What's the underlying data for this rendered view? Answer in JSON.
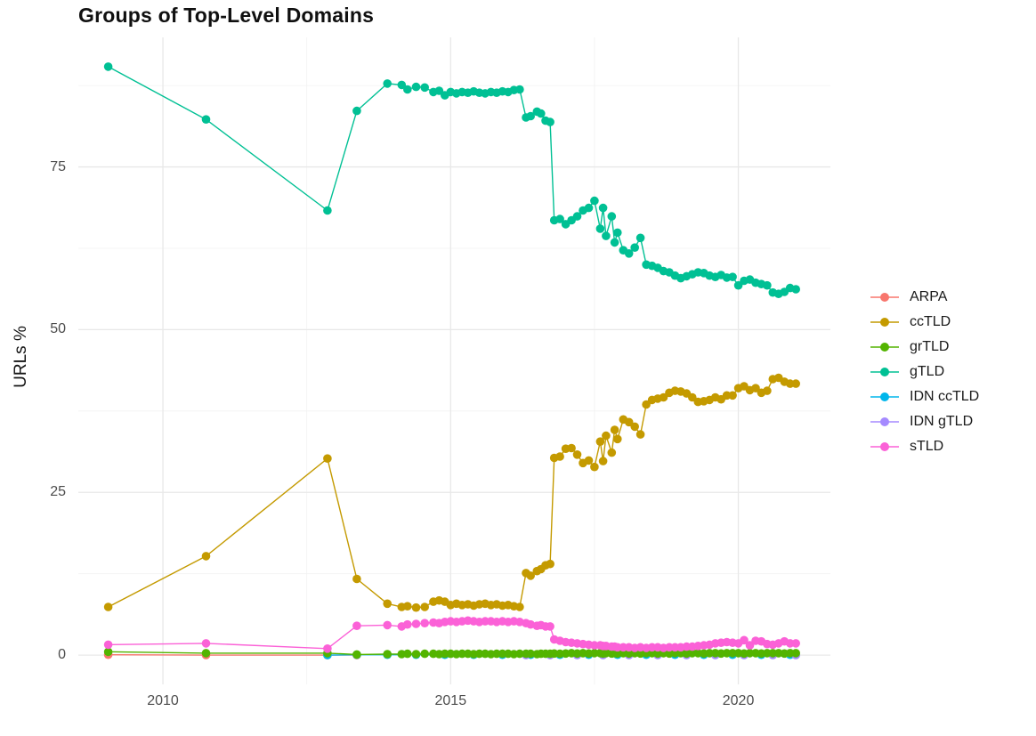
{
  "title": "Groups of Top-Level Domains",
  "y_axis": {
    "label": "URLs %",
    "tick_labels": [
      "0",
      "25",
      "50",
      "75"
    ]
  },
  "x_axis": {
    "tick_labels": [
      "2010",
      "2015",
      "2020"
    ]
  },
  "legend": {
    "position": "right",
    "items": [
      "ARPA",
      "ccTLD",
      "grTLD",
      "gTLD",
      "IDN ccTLD",
      "IDN gTLD",
      "sTLD"
    ]
  },
  "chart_data": {
    "type": "line",
    "title": "Groups of Top-Level Domains",
    "xlabel": "",
    "ylabel": "URLs %",
    "x_range": [
      2008.53,
      2021.6
    ],
    "y_range": [
      -4.5,
      94.9
    ],
    "x_ticks": [
      2010,
      2015,
      2020
    ],
    "x_minor_ticks": [
      2012.5,
      2017.5
    ],
    "y_ticks": [
      0,
      25,
      50,
      75
    ],
    "y_minor_ticks": [
      12.5,
      37.5,
      62.5,
      87.5
    ],
    "grid": "white background, light gray major and minor gridlines",
    "legend_position": "right",
    "draw_order": [
      "ARPA",
      "IDN ccTLD",
      "IDN gTLD",
      "grTLD",
      "sTLD",
      "ccTLD",
      "gTLD"
    ],
    "x": [
      2009.05,
      2010.75,
      2012.86,
      2013.37,
      2013.9,
      2014.15,
      2014.25,
      2014.4,
      2014.55,
      2014.7,
      2014.8,
      2014.9,
      2015.0,
      2015.1,
      2015.2,
      2015.3,
      2015.4,
      2015.5,
      2015.6,
      2015.7,
      2015.8,
      2015.9,
      2016.0,
      2016.1,
      2016.2,
      2016.31,
      2016.39,
      2016.5,
      2016.57,
      2016.65,
      2016.73,
      2016.8,
      2016.9,
      2017.0,
      2017.1,
      2017.2,
      2017.3,
      2017.4,
      2017.5,
      2017.6,
      2017.65,
      2017.7,
      2017.8,
      2017.85,
      2017.9,
      2018.0,
      2018.1,
      2018.2,
      2018.3,
      2018.4,
      2018.5,
      2018.6,
      2018.7,
      2018.8,
      2018.9,
      2019.0,
      2019.1,
      2019.2,
      2019.3,
      2019.4,
      2019.5,
      2019.6,
      2019.7,
      2019.8,
      2019.9,
      2020.0,
      2020.1,
      2020.2,
      2020.3,
      2020.4,
      2020.5,
      2020.6,
      2020.7,
      2020.8,
      2020.9,
      2021.0
    ],
    "series": [
      {
        "name": "ARPA",
        "color": "#F8766D",
        "points": [
          [
            2009.05,
            0.05
          ],
          [
            2010.75,
            0.0
          ],
          [
            2012.86,
            0.0
          ],
          [
            2013.37,
            0.0
          ]
        ]
      },
      {
        "name": "ccTLD",
        "color": "#C49A00",
        "values": [
          7.4,
          15.2,
          30.2,
          11.7,
          7.9,
          7.4,
          7.5,
          7.3,
          7.4,
          8.2,
          8.4,
          8.2,
          7.7,
          7.9,
          7.7,
          7.8,
          7.6,
          7.8,
          7.9,
          7.7,
          7.8,
          7.6,
          7.7,
          7.5,
          7.4,
          12.6,
          12.2,
          12.9,
          13.2,
          13.8,
          14.0,
          30.3,
          30.5,
          31.7,
          31.8,
          30.8,
          29.5,
          29.9,
          28.9,
          32.8,
          29.8,
          33.7,
          31.1,
          34.6,
          33.2,
          36.2,
          35.8,
          35.1,
          33.9,
          38.5,
          39.2,
          39.4,
          39.6,
          40.3,
          40.6,
          40.5,
          40.2,
          39.6,
          38.9,
          39.0,
          39.2,
          39.6,
          39.3,
          39.9,
          39.9,
          41.0,
          41.3,
          40.7,
          41.0,
          40.3,
          40.6,
          42.4,
          42.6,
          42.0,
          41.7,
          41.7
        ]
      },
      {
        "name": "grTLD",
        "color": "#53B400",
        "values": [
          0.5,
          0.3,
          0.3,
          0.1,
          0.15,
          0.15,
          0.2,
          0.15,
          0.2,
          0.2,
          0.15,
          0.2,
          0.2,
          0.15,
          0.2,
          0.2,
          0.15,
          0.2,
          0.2,
          0.15,
          0.2,
          0.2,
          0.2,
          0.15,
          0.2,
          0.2,
          0.2,
          0.15,
          0.2,
          0.2,
          0.2,
          0.25,
          0.2,
          0.25,
          0.3,
          0.25,
          0.3,
          0.25,
          0.3,
          0.3,
          0.25,
          0.3,
          0.25,
          0.3,
          0.25,
          0.3,
          0.25,
          0.3,
          0.25,
          0.3,
          0.3,
          0.25,
          0.3,
          0.25,
          0.3,
          0.3,
          0.25,
          0.3,
          0.3,
          0.25,
          0.3,
          0.3,
          0.25,
          0.3,
          0.3,
          0.3,
          0.25,
          0.3,
          0.3,
          0.25,
          0.3,
          0.3,
          0.3,
          0.25,
          0.3,
          0.3
        ]
      },
      {
        "name": "gTLD",
        "color": "#00C094",
        "values": [
          90.4,
          82.3,
          68.3,
          83.6,
          87.8,
          87.6,
          86.9,
          87.3,
          87.2,
          86.5,
          86.7,
          86.0,
          86.5,
          86.3,
          86.5,
          86.4,
          86.6,
          86.4,
          86.3,
          86.5,
          86.4,
          86.6,
          86.5,
          86.8,
          86.9,
          82.6,
          82.8,
          83.5,
          83.2,
          82.1,
          81.9,
          66.8,
          67.0,
          66.2,
          66.8,
          67.4,
          68.3,
          68.7,
          69.8,
          65.5,
          68.7,
          64.4,
          67.4,
          63.4,
          64.9,
          62.2,
          61.7,
          62.6,
          64.1,
          60.0,
          59.8,
          59.5,
          59.0,
          58.8,
          58.3,
          57.9,
          58.2,
          58.5,
          58.8,
          58.7,
          58.3,
          58.1,
          58.4,
          58.0,
          58.1,
          56.8,
          57.5,
          57.7,
          57.2,
          57.0,
          56.8,
          55.7,
          55.5,
          55.8,
          56.4,
          56.2
        ]
      },
      {
        "name": "IDN ccTLD",
        "color": "#00B6EB",
        "points": [
          [
            2012.86,
            0.0
          ],
          [
            2013.37,
            0.05
          ],
          [
            2013.9,
            0.05
          ],
          [
            2014.4,
            0.05
          ],
          [
            2014.9,
            0.05
          ],
          [
            2015.4,
            0.05
          ],
          [
            2015.9,
            0.05
          ],
          [
            2016.39,
            0.05
          ],
          [
            2016.9,
            0.05
          ],
          [
            2017.4,
            0.05
          ],
          [
            2017.9,
            0.05
          ],
          [
            2018.4,
            0.05
          ],
          [
            2018.9,
            0.05
          ],
          [
            2019.4,
            0.05
          ],
          [
            2019.9,
            0.05
          ],
          [
            2020.4,
            0.05
          ],
          [
            2020.9,
            0.05
          ]
        ]
      },
      {
        "name": "IDN gTLD",
        "color": "#A58AFF",
        "points": [
          [
            2016.31,
            0.0
          ],
          [
            2016.73,
            0.0
          ],
          [
            2017.2,
            0.0
          ],
          [
            2017.65,
            0.0
          ],
          [
            2018.1,
            0.0
          ],
          [
            2018.6,
            0.0
          ],
          [
            2019.1,
            0.0
          ],
          [
            2019.6,
            0.0
          ],
          [
            2020.1,
            0.0
          ],
          [
            2020.6,
            0.0
          ],
          [
            2021.0,
            0.0
          ]
        ]
      },
      {
        "name": "sTLD",
        "color": "#FB61D7",
        "values": [
          1.6,
          1.8,
          1.0,
          4.5,
          4.6,
          4.4,
          4.7,
          4.8,
          4.9,
          5.0,
          4.9,
          5.1,
          5.2,
          5.1,
          5.2,
          5.3,
          5.2,
          5.1,
          5.2,
          5.2,
          5.1,
          5.2,
          5.1,
          5.2,
          5.1,
          4.9,
          4.7,
          4.5,
          4.6,
          4.4,
          4.4,
          2.4,
          2.2,
          2.0,
          1.9,
          1.8,
          1.7,
          1.6,
          1.5,
          1.5,
          1.4,
          1.4,
          1.3,
          1.3,
          1.2,
          1.2,
          1.2,
          1.1,
          1.2,
          1.1,
          1.2,
          1.2,
          1.1,
          1.2,
          1.2,
          1.2,
          1.3,
          1.3,
          1.4,
          1.5,
          1.6,
          1.8,
          1.9,
          2.0,
          1.9,
          1.8,
          2.3,
          1.5,
          2.2,
          2.1,
          1.7,
          1.6,
          1.8,
          2.1,
          1.8,
          1.8
        ]
      }
    ]
  }
}
